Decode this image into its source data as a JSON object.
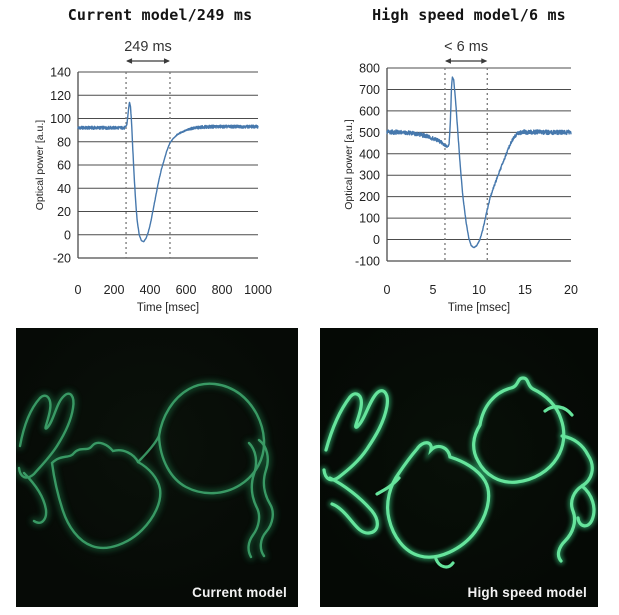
{
  "colors": {
    "line": "#4678ad",
    "grid": "#4c4c4c",
    "tick_text": "#222222",
    "marker_dotted": "#787878",
    "arrow": "#3a3a3a",
    "annotation_text": "#333333",
    "green_bright": "#66e49c",
    "green_glow": "#2fae6e",
    "green_dim": "#46b578",
    "green_dim_glow": "#1f7a4a",
    "image_bg": "#060a06",
    "caption_text": "#f3f3f3"
  },
  "images": {
    "left": {
      "label": "Current model"
    },
    "right": {
      "label": "High speed model"
    }
  },
  "chart_data": [
    {
      "type": "line",
      "title": "Current model/249 ms",
      "annotation": "249 ms",
      "xlabel": "Time [msec]",
      "ylabel": "Optical power [a.u.]",
      "xlim": [
        0,
        1000
      ],
      "ylim": [
        -20,
        140
      ],
      "xticks": [
        0,
        200,
        400,
        600,
        800,
        1000
      ],
      "yticks": [
        140,
        120,
        100,
        80,
        60,
        40,
        20,
        0,
        -20
      ],
      "grid": true,
      "legend": "none",
      "marker_x": [
        267,
        511
      ],
      "noise_amp": 1.3,
      "points": [
        [
          0,
          92,
          1
        ],
        [
          60,
          92,
          1
        ],
        [
          120,
          92,
          1
        ],
        [
          180,
          92,
          1
        ],
        [
          230,
          92,
          1
        ],
        [
          262,
          92,
          1
        ],
        [
          272,
          95,
          0.2
        ],
        [
          280,
          107,
          0
        ],
        [
          286,
          114,
          0
        ],
        [
          292,
          110,
          0
        ],
        [
          299,
          92,
          0
        ],
        [
          308,
          62,
          0
        ],
        [
          318,
          34,
          0
        ],
        [
          328,
          13,
          0
        ],
        [
          340,
          0,
          0
        ],
        [
          352,
          -5,
          0
        ],
        [
          365,
          -6,
          0
        ],
        [
          378,
          -3,
          0.1
        ],
        [
          390,
          2,
          0.1
        ],
        [
          403,
          10,
          0.12
        ],
        [
          418,
          22,
          0.15
        ],
        [
          433,
          34,
          0.15
        ],
        [
          448,
          46,
          0.15
        ],
        [
          463,
          56,
          0.15
        ],
        [
          478,
          64,
          0.15
        ],
        [
          493,
          72,
          0.15
        ],
        [
          511,
          79,
          0.2
        ],
        [
          530,
          83,
          0.25
        ],
        [
          550,
          86,
          0.3
        ],
        [
          572,
          88,
          0.4
        ],
        [
          596,
          89.5,
          0.5
        ],
        [
          622,
          91,
          0.7
        ],
        [
          650,
          92,
          0.9
        ],
        [
          690,
          92.5,
          1
        ],
        [
          740,
          93,
          1
        ],
        [
          800,
          93,
          1
        ],
        [
          860,
          93,
          1
        ],
        [
          920,
          93,
          1
        ],
        [
          1000,
          93,
          1
        ]
      ]
    },
    {
      "type": "line",
      "title": "High speed model/6 ms",
      "annotation": "< 6 ms",
      "xlabel": "Time [msec]",
      "ylabel": "Optical power [a.u.]",
      "xlim": [
        0,
        20
      ],
      "ylim": [
        -100,
        800
      ],
      "xticks": [
        0,
        5,
        10,
        15,
        20
      ],
      "yticks": [
        800,
        700,
        600,
        500,
        400,
        300,
        200,
        100,
        0,
        -100
      ],
      "grid": true,
      "legend": "none",
      "marker_x": [
        6.3,
        10.9
      ],
      "noise_amp": 10,
      "points": [
        [
          0,
          500,
          1
        ],
        [
          0.8,
          501,
          1
        ],
        [
          1.6,
          499,
          1
        ],
        [
          2.4,
          497,
          1
        ],
        [
          3.2,
          493,
          1
        ],
        [
          4,
          486,
          1
        ],
        [
          4.8,
          475,
          1
        ],
        [
          5.5,
          462,
          1
        ],
        [
          6.0,
          450,
          0.9
        ],
        [
          6.35,
          438,
          0.7
        ],
        [
          6.6,
          432,
          0.4
        ],
        [
          6.75,
          445,
          0.1
        ],
        [
          6.9,
          560,
          0
        ],
        [
          7.0,
          700,
          0
        ],
        [
          7.1,
          758,
          0
        ],
        [
          7.25,
          745,
          0
        ],
        [
          7.45,
          650,
          0
        ],
        [
          7.7,
          500,
          0
        ],
        [
          7.95,
          350,
          0
        ],
        [
          8.25,
          200,
          0
        ],
        [
          8.6,
          80,
          0.05
        ],
        [
          8.9,
          5,
          0.1
        ],
        [
          9.15,
          -28,
          0.1
        ],
        [
          9.45,
          -38,
          0.12
        ],
        [
          9.75,
          -28,
          0.15
        ],
        [
          10.05,
          -5,
          0.2
        ],
        [
          10.35,
          35,
          0.3
        ],
        [
          10.65,
          90,
          0.4
        ],
        [
          10.95,
          150,
          0.45
        ],
        [
          11.25,
          200,
          0.5
        ],
        [
          11.6,
          245,
          0.55
        ],
        [
          11.95,
          285,
          0.6
        ],
        [
          12.3,
          325,
          0.6
        ],
        [
          12.7,
          370,
          0.6
        ],
        [
          13.1,
          415,
          0.6
        ],
        [
          13.5,
          455,
          0.6
        ],
        [
          13.9,
          482,
          0.7
        ],
        [
          14.3,
          497,
          0.9
        ],
        [
          14.9,
          502,
          1
        ],
        [
          15.6,
          500,
          1
        ],
        [
          16.4,
          501,
          1
        ],
        [
          17.2,
          500,
          1
        ],
        [
          18,
          500,
          1
        ],
        [
          19,
          500,
          1
        ],
        [
          20,
          500,
          1
        ]
      ]
    }
  ]
}
